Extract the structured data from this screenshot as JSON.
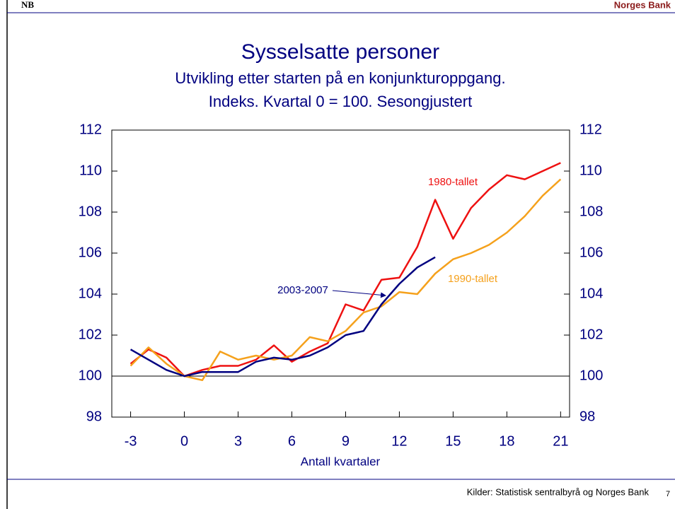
{
  "header": {
    "logo": "NB",
    "brand": "Norges Bank"
  },
  "chart_data": {
    "type": "line",
    "title": "Sysselsatte personer",
    "subtitle": [
      "Utvikling etter starten på en konjunkturoppgang.",
      "Indeks. Kvartal 0 = 100. Sesongjustert"
    ],
    "x_label": "Antall kvartaler",
    "x": [
      -3,
      -2,
      -1,
      0,
      1,
      2,
      3,
      4,
      5,
      6,
      7,
      8,
      9,
      10,
      11,
      12,
      13,
      14,
      15,
      16,
      17,
      18,
      19,
      20,
      21
    ],
    "series": [
      {
        "name": "1980-tallet",
        "color": "#ee1111",
        "values": [
          100.6,
          101.3,
          100.9,
          100.0,
          100.3,
          100.5,
          100.5,
          100.8,
          101.5,
          100.7,
          101.2,
          101.6,
          103.5,
          103.2,
          104.7,
          104.8,
          106.3,
          108.6,
          106.7,
          108.2,
          109.1,
          109.8,
          109.6,
          110.0,
          110.4
        ]
      },
      {
        "name": "1990-tallet",
        "color": "#f5a11c",
        "values": [
          100.5,
          101.4,
          100.6,
          100.0,
          99.8,
          101.2,
          100.8,
          101.0,
          100.8,
          101.0,
          101.9,
          101.7,
          102.2,
          103.1,
          103.4,
          104.1,
          104.0,
          105.0,
          105.7,
          106.0,
          106.4,
          107.0,
          107.8,
          108.8,
          109.6
        ]
      },
      {
        "name": "2003-2007",
        "color": "#000080",
        "values": [
          101.3,
          100.8,
          100.3,
          100.0,
          100.2,
          100.2,
          100.2,
          100.7,
          100.9,
          100.8,
          101.0,
          101.4,
          102.0,
          102.2,
          103.5,
          104.5,
          105.3,
          105.8,
          null,
          null,
          null,
          null,
          null,
          null,
          null
        ]
      }
    ],
    "xlim": [
      -4.05,
      21.5
    ],
    "xticks": [
      -3,
      0,
      3,
      6,
      9,
      12,
      15,
      18,
      21
    ],
    "ylim": [
      98,
      112
    ],
    "yticks": [
      98,
      100,
      102,
      104,
      106,
      108,
      110,
      112
    ],
    "y2lim": [
      98,
      112
    ],
    "y2ticks": [
      98,
      100,
      102,
      104,
      106,
      108,
      110,
      112
    ],
    "reference_line": 100
  },
  "footer": {
    "source": "Kilder: Statistisk sentralbyrå og Norges Bank",
    "page": "7"
  }
}
